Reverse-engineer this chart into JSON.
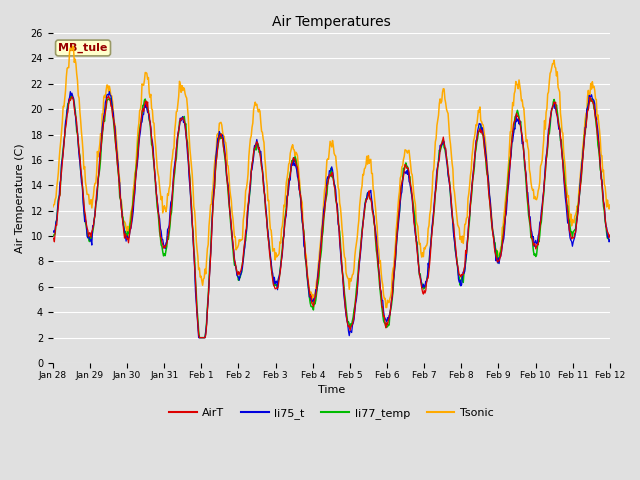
{
  "title": "Air Temperatures",
  "xlabel": "Time",
  "ylabel": "Air Temperature (C)",
  "ylim": [
    0,
    26
  ],
  "yticks": [
    0,
    2,
    4,
    6,
    8,
    10,
    12,
    14,
    16,
    18,
    20,
    22,
    24,
    26
  ],
  "colors": {
    "AirT": "#dd0000",
    "li75_t": "#0000dd",
    "li77_temp": "#00bb00",
    "Tsonic": "#ffaa00"
  },
  "line_widths": {
    "AirT": 0.9,
    "li75_t": 0.9,
    "li77_temp": 1.1,
    "Tsonic": 1.1
  },
  "legend_label": "MB_tule",
  "background_color": "#e0e0e0",
  "plot_bg_color": "#e0e0e0",
  "grid_color": "#ffffff",
  "x_tick_labels": [
    "Jan 28",
    "Jan 29",
    "Jan 30",
    "Jan 31",
    "Feb 1",
    "Feb 2",
    "Feb 3",
    "Feb 4",
    "Feb 5",
    "Feb 6",
    "Feb 7",
    "Feb 8",
    "Feb 9",
    "Feb 10",
    "Feb 11",
    "Feb 12"
  ],
  "n_points": 700,
  "figsize": [
    6.4,
    4.8
  ],
  "dpi": 100
}
